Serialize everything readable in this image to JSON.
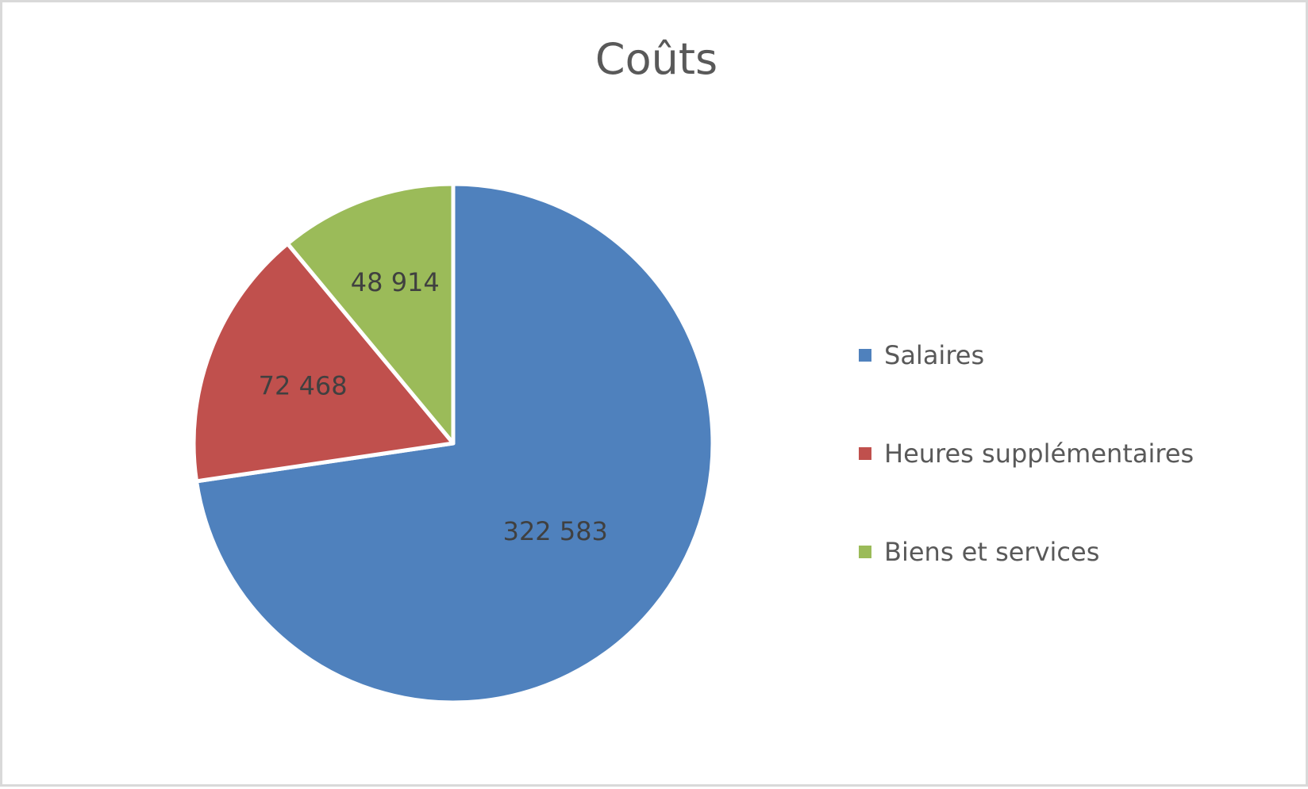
{
  "chart": {
    "title": "Coûts"
  },
  "legend": {
    "items": [
      {
        "label": "Salaires",
        "color": "#4f81bd"
      },
      {
        "label": "Heures supplémentaires",
        "color": "#c0504d"
      },
      {
        "label": "Biens et services",
        "color": "#9bbb59"
      }
    ]
  },
  "data_labels": [
    "322 583",
    "72 468",
    "48 914"
  ],
  "chart_data": {
    "type": "pie",
    "title": "Coûts",
    "categories": [
      "Salaires",
      "Heures supplémentaires",
      "Biens et services"
    ],
    "values": [
      322583,
      72468,
      48914
    ],
    "colors": [
      "#4f81bd",
      "#c0504d",
      "#9bbb59"
    ],
    "data_labels": [
      "322 583",
      "72 468",
      "48 914"
    ],
    "start_angle_deg": 0,
    "direction": "clockwise",
    "legend_position": "right",
    "xlabel": "",
    "ylabel": ""
  }
}
